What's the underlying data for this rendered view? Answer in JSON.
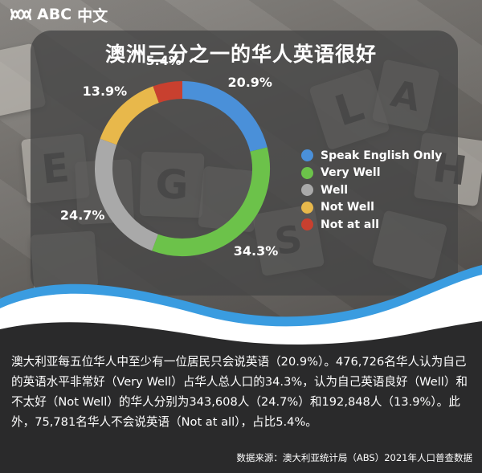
{
  "brand": {
    "logo_text": "ABC",
    "logo_chinese": "中文"
  },
  "chart_data": {
    "type": "pie",
    "title": "澳洲三分之一的华人英语很好",
    "labels": [
      "Speak English Only",
      "Very Well",
      "Well",
      "Not Well",
      "Not at all"
    ],
    "values": [
      20.9,
      34.3,
      24.7,
      13.9,
      5.4
    ],
    "value_labels": [
      "20.9%",
      "34.3%",
      "24.7%",
      "13.9%",
      "5.4%"
    ],
    "colors": [
      "#4a90d9",
      "#6cc24a",
      "#a9a9a9",
      "#e8b84b",
      "#c8402f"
    ],
    "donut": true,
    "legend_position": "right"
  },
  "caption": "澳大利亚每五位华人中至少有一位居民只会说英语（20.9%）。476,726名华人认为自己的英语水平非常好（Very Well）占华人总人口的34.3%，认为自己英语良好（Well）和不太好（Not Well）的华人分别为343,608人（24.7%）和192,848人（13.9%）。此外，75,781名华人不会说英语（Not at all），占比5.4%。",
  "source": "数据来源：澳大利亚统计局（ABS）2021年人口普查数据"
}
